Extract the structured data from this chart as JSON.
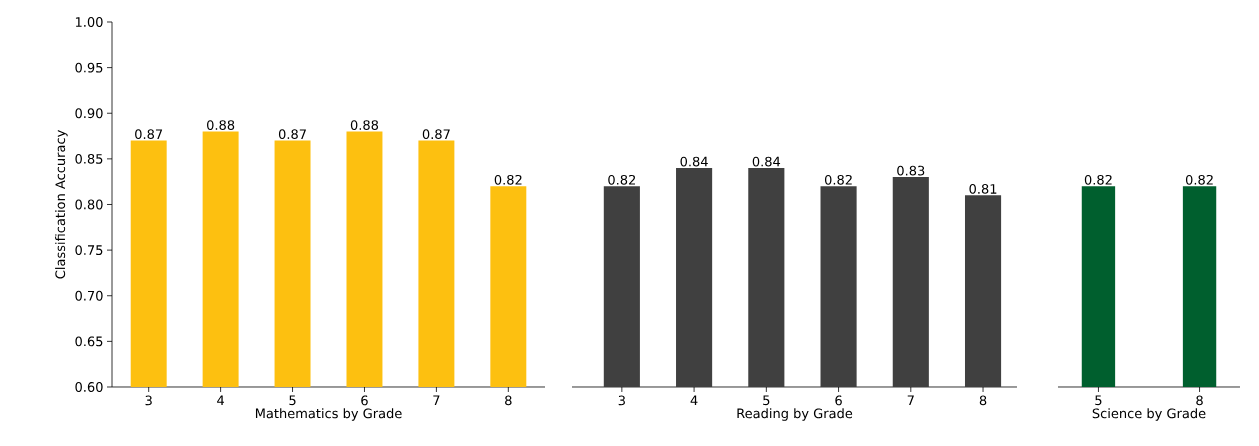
{
  "chart_data": [
    {
      "type": "bar",
      "xlabel": "Mathematics by Grade",
      "ylabel": "Classification Accuracy",
      "categories": [
        "3",
        "4",
        "5",
        "6",
        "7",
        "8"
      ],
      "values": [
        0.87,
        0.88,
        0.87,
        0.88,
        0.87,
        0.82
      ],
      "color": "#fdc010",
      "ylim": [
        0.6,
        1.0
      ],
      "yticks": [
        {
          "value": 0.6,
          "label": "0.60"
        },
        {
          "value": 0.65,
          "label": "0.65"
        },
        {
          "value": 0.7,
          "label": "0.70"
        },
        {
          "value": 0.75,
          "label": "0.75"
        },
        {
          "value": 0.8,
          "label": "0.80"
        },
        {
          "value": 0.85,
          "label": "0.85"
        },
        {
          "value": 0.9,
          "label": "0.90"
        },
        {
          "value": 0.95,
          "label": "0.95"
        },
        {
          "value": 1.0,
          "label": "1.00"
        }
      ],
      "data_labels": true
    },
    {
      "type": "bar",
      "xlabel": "Reading by Grade",
      "categories": [
        "3",
        "4",
        "5",
        "6",
        "7",
        "8"
      ],
      "values": [
        0.82,
        0.84,
        0.84,
        0.82,
        0.83,
        0.81
      ],
      "color": "#404040",
      "ylim": [
        0.6,
        1.0
      ],
      "tick_labels": "x",
      "data_labels": true
    },
    {
      "type": "bar",
      "xlabel": "Science by Grade",
      "categories": [
        "5",
        "8"
      ],
      "values": [
        0.82,
        0.82
      ],
      "color": "#005f2e",
      "ylim": [
        0.6,
        1.0
      ],
      "tick_labels": "x",
      "data_labels": true
    }
  ]
}
